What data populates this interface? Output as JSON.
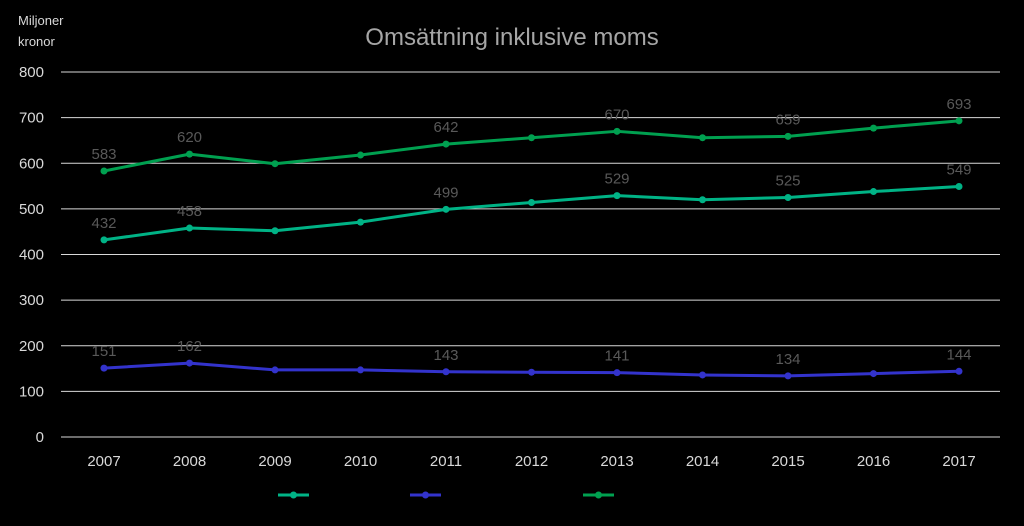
{
  "chart_data": {
    "type": "line",
    "title": "Omsättning inklusive moms",
    "ylabel_line1": "Miljoner",
    "ylabel_line2": "kronor",
    "xlabel": "",
    "ylim": [
      0,
      800
    ],
    "yticks": [
      "0",
      "100",
      "200",
      "300",
      "400",
      "500",
      "600",
      "700",
      "800"
    ],
    "categories": [
      "2007",
      "2008",
      "2009",
      "2010",
      "2011",
      "2012",
      "2013",
      "2014",
      "2015",
      "2016",
      "2017"
    ],
    "grid": true,
    "legend": "bottom",
    "series": [
      {
        "color": "#00b386",
        "values": [
          432,
          458,
          452,
          471,
          499,
          514,
          529,
          520,
          525,
          538,
          549
        ],
        "labels": [
          "432",
          "458",
          "",
          "",
          "499",
          "",
          "529",
          "",
          "525",
          "",
          "549"
        ]
      },
      {
        "color": "#3333cc",
        "values": [
          151,
          162,
          147,
          147,
          143,
          142,
          141,
          136,
          134,
          139,
          144
        ],
        "labels": [
          "151",
          "162",
          "",
          "",
          "143",
          "",
          "141",
          "",
          "134",
          "",
          "144"
        ]
      },
      {
        "color": "#00a050",
        "values": [
          583,
          620,
          599,
          618,
          642,
          656,
          670,
          656,
          659,
          677,
          693
        ],
        "labels": [
          "583",
          "620",
          "",
          "",
          "642",
          "",
          "670",
          "",
          "659",
          "",
          "693"
        ]
      }
    ]
  }
}
